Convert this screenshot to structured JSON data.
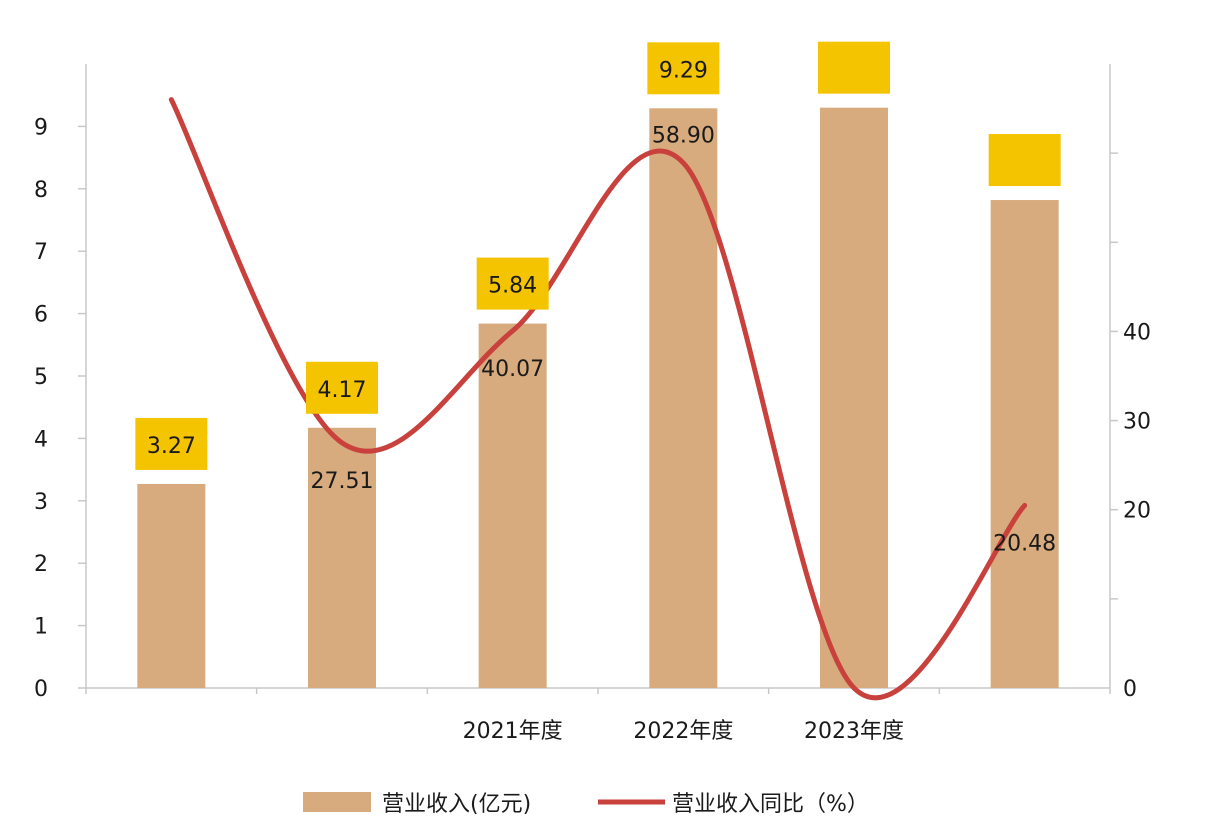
{
  "chart_data": {
    "type": "bar",
    "categories": [
      "",
      "",
      "2021年度",
      "2022年度",
      "2023年度",
      ""
    ],
    "series": [
      {
        "name": "营业收入(亿元)",
        "type": "bar",
        "axis": "left",
        "values": [
          3.27,
          4.17,
          5.84,
          9.29,
          9.3,
          7.82
        ],
        "labels": [
          "3.27",
          "4.17",
          "5.84",
          "9.29",
          "",
          ""
        ]
      },
      {
        "name": "营业收入同比（%）",
        "type": "line",
        "axis": "right",
        "values": [
          66,
          27.51,
          40.07,
          58.9,
          0,
          20.48
        ],
        "labels": [
          "",
          "27.51",
          "40.07",
          "58.90",
          "",
          "20.48"
        ]
      }
    ],
    "ylim_left": [
      0,
      10
    ],
    "yticks_left": [
      "0",
      "1",
      "2",
      "3",
      "4",
      "5",
      "6",
      "7",
      "8",
      "9"
    ],
    "ylim_right": [
      0,
      70
    ],
    "yticks_right": [
      "0",
      "20",
      "30",
      "40"
    ],
    "legend_position": "bottom",
    "grid": false,
    "colors": {
      "bar": "#d7ab7e",
      "line": "#c9413c",
      "label_box": "#f4c400",
      "axis": "#c8c8c8"
    }
  }
}
